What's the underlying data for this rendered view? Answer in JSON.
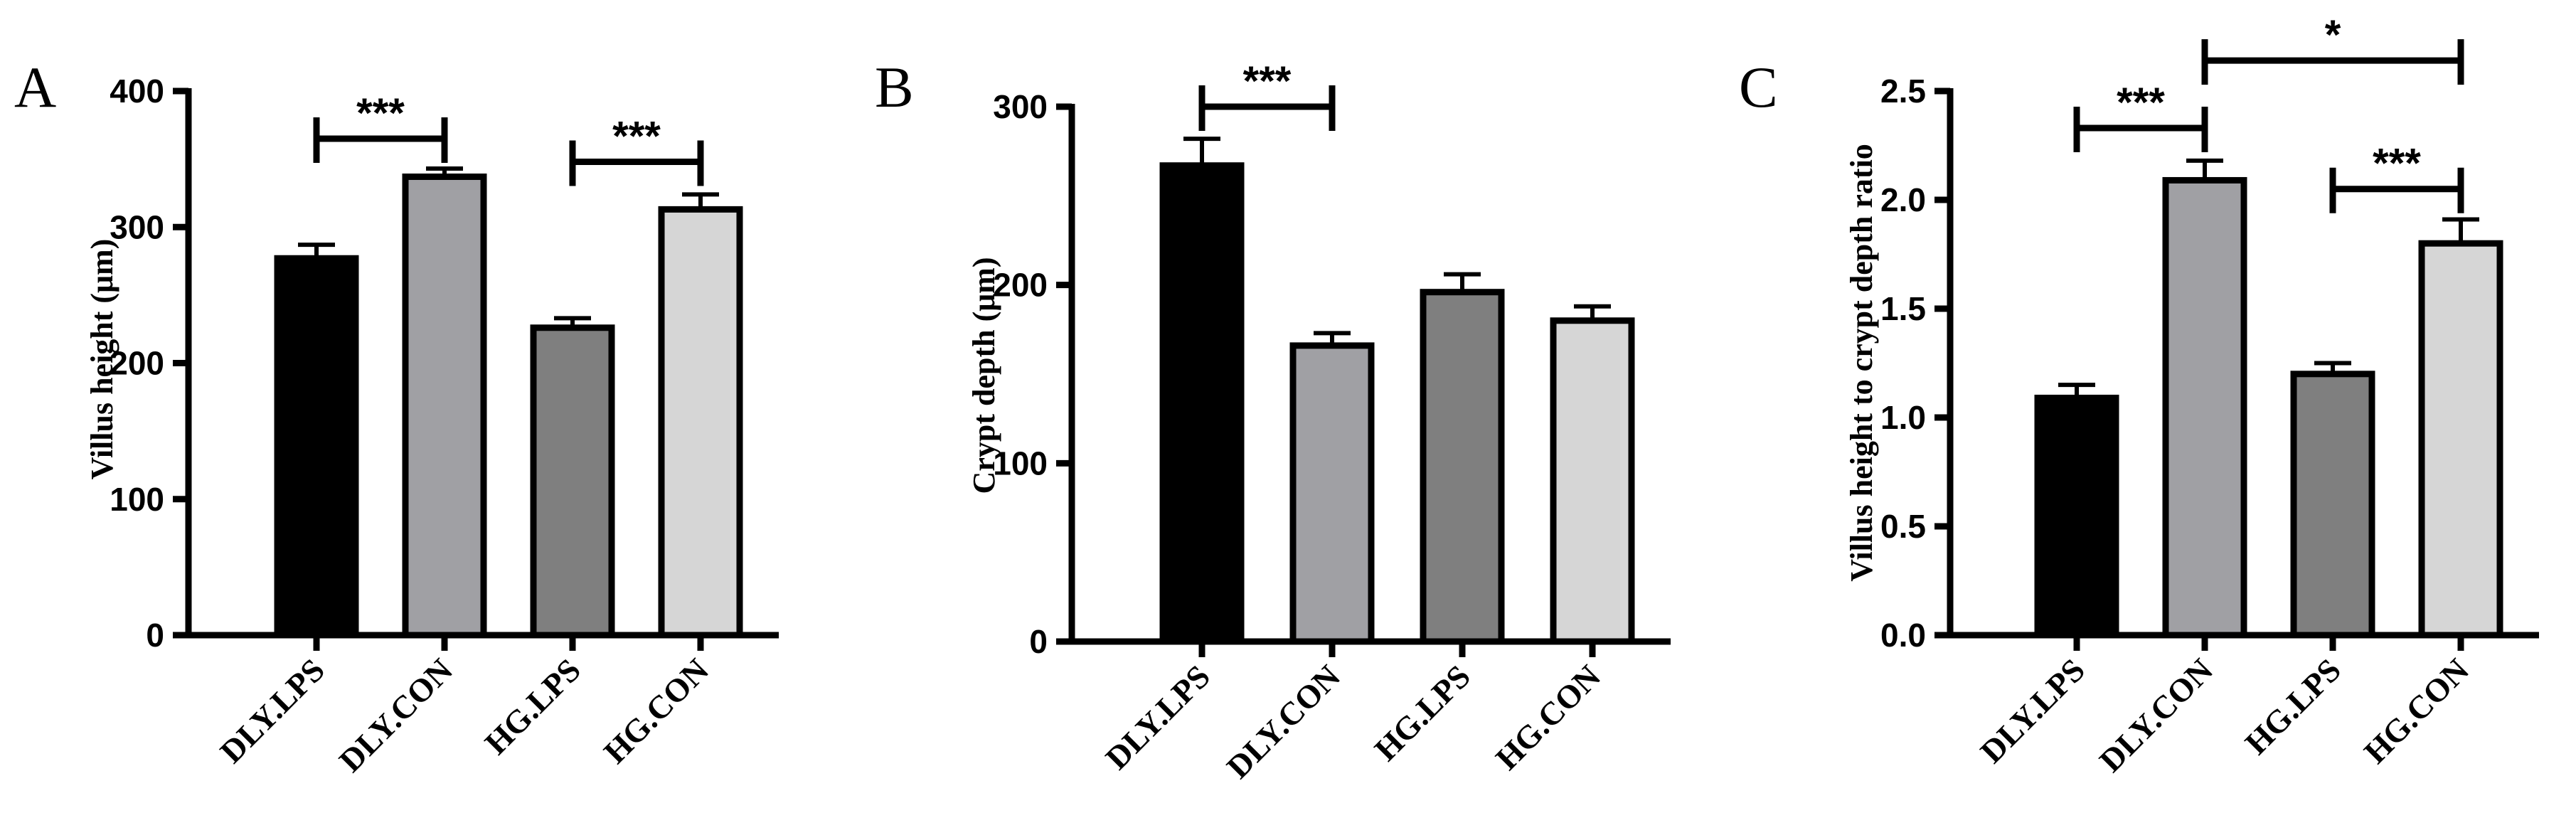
{
  "panel_labels": [
    "A",
    "B",
    "C"
  ],
  "chart_data": [
    {
      "type": "bar",
      "panel": "A",
      "categories": [
        "DLY.LPS",
        "DLY.CON",
        "HG.LPS",
        "HG.CON"
      ],
      "values": [
        277,
        337,
        226,
        313
      ],
      "errors": [
        10,
        6,
        7,
        11
      ],
      "colors": [
        "#000000",
        "#a0a0a4",
        "#7f7f7f",
        "#d6d6d6"
      ],
      "xlabel": "",
      "ylabel": "Villus height (μm)",
      "ylim": [
        0,
        400
      ],
      "yticks": [
        "0",
        "100",
        "200",
        "300",
        "400"
      ],
      "grid": false,
      "significance": [
        {
          "from": "DLY.LPS",
          "to": "DLY.CON",
          "label": "***",
          "y": 365
        },
        {
          "from": "HG.LPS",
          "to": "HG.CON",
          "label": "***",
          "y": 348
        }
      ]
    },
    {
      "type": "bar",
      "panel": "B",
      "categories": [
        "DLY.LPS",
        "DLY.CON",
        "HG.LPS",
        "HG.CON"
      ],
      "values": [
        267,
        166,
        196,
        180
      ],
      "errors": [
        15,
        7,
        10,
        8
      ],
      "colors": [
        "#000000",
        "#a0a0a4",
        "#7f7f7f",
        "#d6d6d6"
      ],
      "xlabel": "",
      "ylabel": "Crypt depth (μm)",
      "ylim": [
        0,
        300
      ],
      "yticks": [
        "0",
        "100",
        "200",
        "300"
      ],
      "grid": false,
      "significance": [
        {
          "from": "DLY.LPS",
          "to": "DLY.CON",
          "label": "***",
          "y": 300
        }
      ]
    },
    {
      "type": "bar",
      "panel": "C",
      "categories": [
        "DLY.LPS",
        "DLY.CON",
        "HG.LPS",
        "HG.CON"
      ],
      "values": [
        1.09,
        2.09,
        1.2,
        1.8
      ],
      "errors": [
        0.06,
        0.09,
        0.05,
        0.11
      ],
      "colors": [
        "#000000",
        "#a0a0a4",
        "#7f7f7f",
        "#d6d6d6"
      ],
      "xlabel": "",
      "ylabel": "Villus height to crypt depth ratio",
      "ylim": [
        0,
        2.5
      ],
      "yticks": [
        "0.0",
        "0.5",
        "1.0",
        "1.5",
        "2.0",
        "2.5"
      ],
      "grid": false,
      "significance": [
        {
          "from": "DLY.LPS",
          "to": "DLY.CON",
          "label": "***",
          "y": 2.33
        },
        {
          "from": "DLY.CON",
          "to": "HG.CON",
          "label": "*",
          "y": 2.64
        },
        {
          "from": "HG.LPS",
          "to": "HG.CON",
          "label": "***",
          "y": 2.05
        }
      ]
    }
  ]
}
